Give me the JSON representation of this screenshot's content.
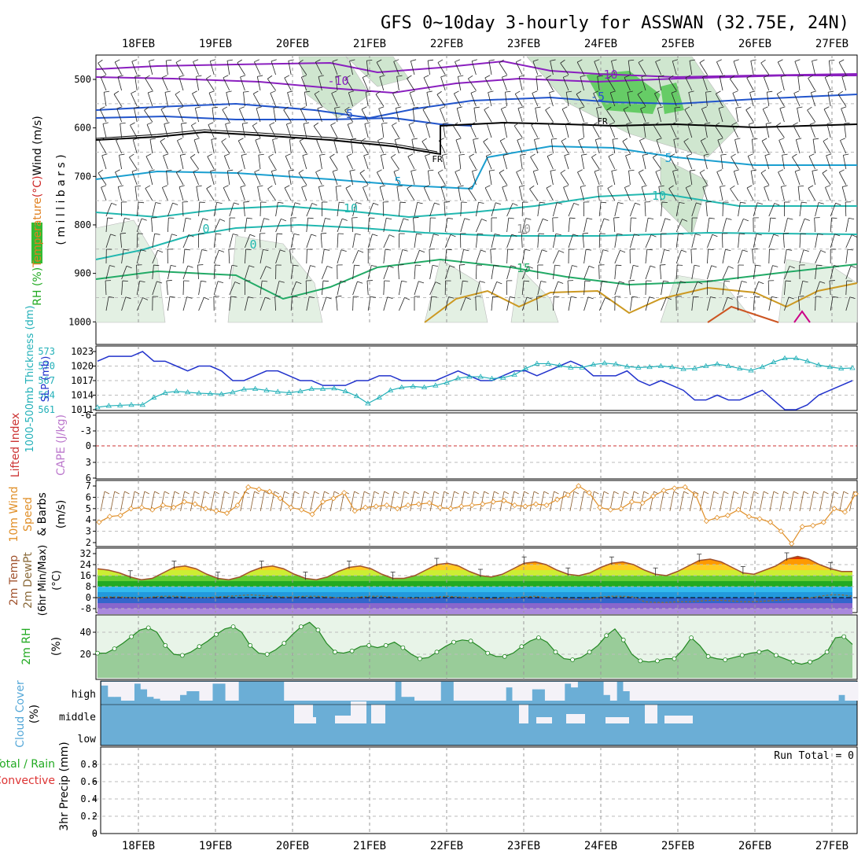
{
  "chart_data": {
    "type": "meteogram",
    "title": "GFS 0~10day 3-hourly for ASSWAN (32.75E, 24N)",
    "dates": [
      "18FEB",
      "19FEB",
      "20FEB",
      "21FEB",
      "22FEB",
      "23FEB",
      "24FEB",
      "25FEB",
      "26FEB",
      "27FEB"
    ],
    "upper_air": {
      "ylabel_parts": [
        {
          "text": "RH (%)",
          "color": "#22aa22"
        },
        {
          "text": "Temperature",
          "color": "#e08020"
        },
        {
          "text": "(°C)",
          "color": "#cc2222"
        },
        {
          "text": "Wind (m/s)",
          "color": "#000000"
        }
      ],
      "unit_label": "( m i l l i b a r s )",
      "pressure_ticks": [
        "500",
        "600",
        "700",
        "800",
        "900",
        "1000"
      ],
      "contour_labels": [
        "-10",
        "-10",
        "-5",
        "-5",
        "FR",
        "FR",
        "-5",
        "5",
        "10",
        "10",
        "0",
        "0",
        "15",
        "15",
        "10",
        "5"
      ],
      "colors": {
        "minus10": "#8a1fbf",
        "minus5": "#2255cc",
        "zero": "#000000",
        "plus5": "#1a9fd0",
        "plus10": "#22b8b0",
        "plus15": "#22aa66",
        "plus20": "#cc9922",
        "plus25": "#cc5522",
        "plus30": "#cc0088"
      }
    },
    "slp_thickness": {
      "left_label": "1000-500mb Thickness (dm)",
      "right_label": "SLP (mb)",
      "thickness_ticks": [
        "573",
        "570",
        "567",
        "564",
        "561"
      ],
      "slp_ticks": [
        "1023",
        "1020",
        "1017",
        "1014",
        "1011"
      ],
      "slp_mb": [
        1021,
        1022,
        1022,
        1022,
        1023,
        1021,
        1021,
        1020,
        1019,
        1020,
        1020,
        1019,
        1017,
        1017,
        1018,
        1019,
        1019,
        1018,
        1017,
        1017,
        1016,
        1016,
        1016,
        1017,
        1017,
        1018,
        1018,
        1017,
        1017,
        1017,
        1017,
        1018,
        1019,
        1018,
        1017,
        1017,
        1018,
        1019,
        1019,
        1018,
        1019,
        1020,
        1021,
        1020,
        1018,
        1018,
        1018,
        1019,
        1017,
        1016,
        1017,
        1016,
        1015,
        1013,
        1013,
        1014,
        1013,
        1013,
        1014,
        1015,
        1013,
        1011,
        1011,
        1012,
        1014,
        1015,
        1016,
        1017
      ],
      "thickness_dm": [
        561.5,
        561.8,
        561.9,
        562.0,
        562.0,
        563.5,
        564.5,
        564.8,
        564.6,
        564.4,
        564.3,
        564.2,
        564.6,
        565.2,
        565.3,
        565.0,
        564.7,
        564.5,
        564.8,
        565.3,
        565.3,
        565.4,
        564.8,
        563.8,
        562.3,
        563.5,
        565.0,
        565.6,
        565.8,
        565.6,
        566.0,
        566.6,
        567.5,
        567.8,
        567.8,
        567.4,
        567.6,
        568.2,
        569.5,
        570.5,
        570.5,
        570.1,
        569.7,
        569.7,
        570.3,
        570.6,
        570.4,
        569.9,
        569.7,
        569.8,
        570.0,
        569.8,
        569.4,
        569.5,
        570.0,
        570.4,
        570.0,
        569.5,
        569.1,
        569.8,
        570.8,
        571.6,
        571.6,
        571.0,
        570.2,
        569.8,
        569.5,
        569.6
      ],
      "colors": {
        "slp": "#2233cc",
        "thickness": "#22b0b8"
      }
    },
    "stability": {
      "left_label": "Lifted Index",
      "right_label": "CAPE (J/kg)",
      "ticks": [
        "-6",
        "-3",
        "0",
        "3",
        "6"
      ],
      "colors": {
        "li": "#cc3333",
        "cape": "#bb77cc"
      }
    },
    "wind10m": {
      "label_line1": "10m Wind",
      "label_line2": "Speed",
      "label_line3": "& Barbs",
      "unit": "(m/s)",
      "ticks": [
        "7",
        "6",
        "5",
        "4",
        "3",
        "2"
      ],
      "speed_ms": [
        3.8,
        4.3,
        4.4,
        5.0,
        5.1,
        4.9,
        5.3,
        5.1,
        5.6,
        5.4,
        5.0,
        4.8,
        4.6,
        5.3,
        6.9,
        6.7,
        6.5,
        5.9,
        5.1,
        4.9,
        4.5,
        5.6,
        5.9,
        6.4,
        4.8,
        5.1,
        5.2,
        5.3,
        5.0,
        5.3,
        5.4,
        5.5,
        5.1,
        5.0,
        5.2,
        5.3,
        5.4,
        5.6,
        5.7,
        5.3,
        5.2,
        5.4,
        5.3,
        5.8,
        6.2,
        7.0,
        6.4,
        5.1,
        4.9,
        5.0,
        5.6,
        5.5,
        6.1,
        6.6,
        6.8,
        6.9,
        6.2,
        3.9,
        4.2,
        4.4,
        4.9,
        4.3,
        4.1,
        3.8,
        3.0,
        1.9,
        3.4,
        3.5,
        3.8,
        5.0,
        4.7,
        6.3
      ],
      "color": "#e08f28"
    },
    "temp2m": {
      "label_line1": "2m Temp",
      "label_line2": "2m DewPt",
      "label_line3": "(6hr Min/Max)",
      "unit": "(°C)",
      "ticks": [
        "32",
        "24",
        "16",
        "8",
        "0",
        "-8"
      ],
      "temp_c": [
        21,
        20,
        18,
        15,
        13,
        14,
        18,
        22,
        23,
        21,
        17,
        14,
        13,
        15,
        19,
        22,
        23,
        21,
        17,
        14,
        13,
        15,
        19,
        22,
        23,
        21,
        17,
        14,
        14,
        16,
        20,
        24,
        25,
        23,
        19,
        16,
        15,
        17,
        21,
        25,
        26,
        24,
        20,
        17,
        16,
        18,
        22,
        25,
        26,
        24,
        20,
        17,
        16,
        19,
        23,
        27,
        28,
        26,
        22,
        18,
        17,
        20,
        23,
        28,
        30,
        28,
        24,
        21,
        19,
        19
      ],
      "dewpoint_c": [
        0,
        0.5,
        0.5,
        0,
        -0.5,
        0.5,
        1,
        1,
        0.5,
        0,
        0,
        0.5,
        1,
        1.5,
        2,
        1.5,
        1,
        0.5,
        0.5,
        1,
        1,
        0.5,
        0,
        -0.5,
        0.5,
        1,
        1,
        0.5,
        0,
        -0.5,
        0,
        0.5,
        1,
        0.5,
        0,
        -0.5,
        -1,
        -0.5,
        0,
        0.5,
        1,
        0,
        -0.5,
        -1,
        -1.5,
        -1,
        0.5,
        1,
        1,
        0.5,
        -3,
        -3.5,
        -3.5,
        -3,
        -3,
        -2.5,
        -2,
        -2,
        -2.5,
        -3,
        -3,
        -2.5,
        -2,
        -1.5,
        -1,
        -0.5,
        1,
        2,
        2,
        1
      ],
      "colors": {
        "temp": "#a0522d",
        "dew": "#8a6a3a",
        "fill_bands": [
          "#dd3300",
          "#ff9900",
          "#ffcc22",
          "#ccee33",
          "#66cc33",
          "#22aa22",
          "#33bbee",
          "#2299dd",
          "#3366cc",
          "#8866cc",
          "#aa88dd"
        ]
      }
    },
    "rh2m": {
      "label": "2m RH",
      "unit": "(%)",
      "ticks": [
        "40",
        "20"
      ],
      "rh_pct": [
        21,
        21,
        25,
        30,
        36,
        42,
        44,
        40,
        28,
        20,
        19,
        22,
        27,
        32,
        38,
        43,
        45,
        40,
        28,
        21,
        20,
        24,
        30,
        38,
        45,
        49,
        42,
        30,
        22,
        21,
        23,
        27,
        28,
        26,
        28,
        31,
        26,
        20,
        16,
        17,
        22,
        27,
        31,
        33,
        32,
        27,
        21,
        18,
        18,
        21,
        27,
        32,
        35,
        31,
        22,
        16,
        15,
        17,
        22,
        28,
        37,
        43,
        33,
        20,
        14,
        13,
        14,
        16,
        16,
        24,
        35,
        28,
        18,
        16,
        15,
        17,
        19,
        21,
        22,
        24,
        19,
        16,
        13,
        11,
        13,
        16,
        22,
        35,
        36,
        29
      ],
      "colors": {
        "line": "#228822",
        "fill": "#7fbf7f",
        "fill_light": "#e8f4e8"
      }
    },
    "cloud": {
      "label": "Cloud Cover",
      "unit": "(%)",
      "levels": [
        "high",
        "middle",
        "low"
      ],
      "high_pct": [
        80,
        20,
        20,
        0,
        0,
        90,
        60,
        20,
        10,
        0,
        0,
        0,
        30,
        50,
        50,
        0,
        0,
        90,
        90,
        0,
        0,
        100,
        100,
        100,
        100,
        100,
        100,
        100,
        0,
        0,
        0,
        0,
        0,
        0,
        0,
        0,
        0,
        0,
        0,
        0,
        0,
        0,
        0,
        0,
        0,
        100,
        20,
        20,
        0,
        0,
        0,
        0,
        100,
        100,
        0,
        0,
        0,
        0,
        0,
        0,
        0,
        0,
        70,
        0,
        0,
        0,
        60,
        60,
        0,
        0,
        0,
        90,
        70,
        100,
        100,
        100,
        100,
        30,
        0,
        100,
        50,
        0,
        0,
        0,
        0,
        0,
        0,
        0,
        0,
        0,
        0,
        0,
        0,
        0,
        0,
        0,
        0,
        0,
        0,
        0,
        0,
        0,
        0,
        0,
        0,
        0,
        0,
        0,
        0,
        0,
        0,
        0,
        0,
        30,
        0,
        0
      ],
      "mid_pct": [
        0,
        0,
        0,
        0,
        0,
        0,
        0,
        0,
        0,
        0,
        0,
        0,
        0,
        0,
        0,
        0,
        0,
        0,
        0,
        0,
        0,
        0,
        0,
        0,
        0,
        0,
        0,
        0,
        0,
        0,
        0,
        0,
        0,
        0,
        0,
        0,
        0,
        0,
        0,
        0,
        0,
        0,
        0,
        0,
        0,
        0,
        0,
        0,
        0,
        0,
        0,
        0,
        0,
        0,
        0,
        0,
        0,
        0,
        0,
        0,
        0,
        0,
        0,
        0,
        0,
        0,
        0,
        0,
        0,
        0,
        0,
        0,
        0,
        0,
        0,
        0,
        0,
        0,
        0,
        0,
        0,
        0,
        0,
        0,
        0,
        0,
        0,
        0,
        0,
        0,
        0,
        0,
        0,
        0,
        0,
        0,
        0,
        0,
        0,
        0,
        0,
        0,
        0,
        0,
        0,
        0,
        0,
        0,
        0,
        0,
        0,
        0,
        0,
        0,
        0,
        0
      ],
      "colors": {
        "sky": "#6baed6",
        "clear": "#f4f2f8"
      }
    },
    "precip": {
      "left_label_a": "Total / Rain",
      "left_label_b": "Convective",
      "ylabel": "3hr Precip (mm)",
      "ticks": [
        "0.8",
        "0.6",
        "0.4",
        "0.2",
        "0"
      ],
      "ylim": [
        0,
        0.9
      ],
      "run_total": "Run Total = 0",
      "values_mm": []
    }
  }
}
